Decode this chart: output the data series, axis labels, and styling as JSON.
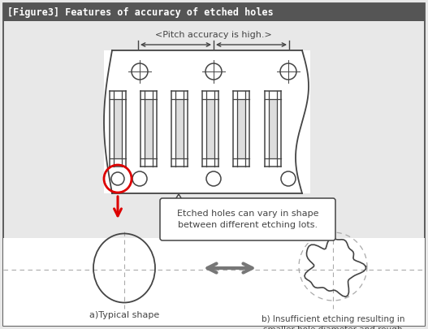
{
  "title": "[Figure3] Features of accuracy of etched holes",
  "title_bg": "#555555",
  "title_text_color": "#ffffff",
  "bg_color": "#e8e8e8",
  "pitch_label": "<Pitch accuracy is high.>",
  "callout_text": "Etched holes can vary in shape\nbetween different etching lots.",
  "label_a": "a)Typical shape",
  "label_b": "b) Insufficient etching resulting in\nsmaller hole diameter and rough\ninside diameter edge",
  "line_color": "#444444",
  "red_color": "#dd0000",
  "gray_arrow_color": "#777777",
  "dashed_color": "#aaaaaa",
  "white": "#ffffff"
}
